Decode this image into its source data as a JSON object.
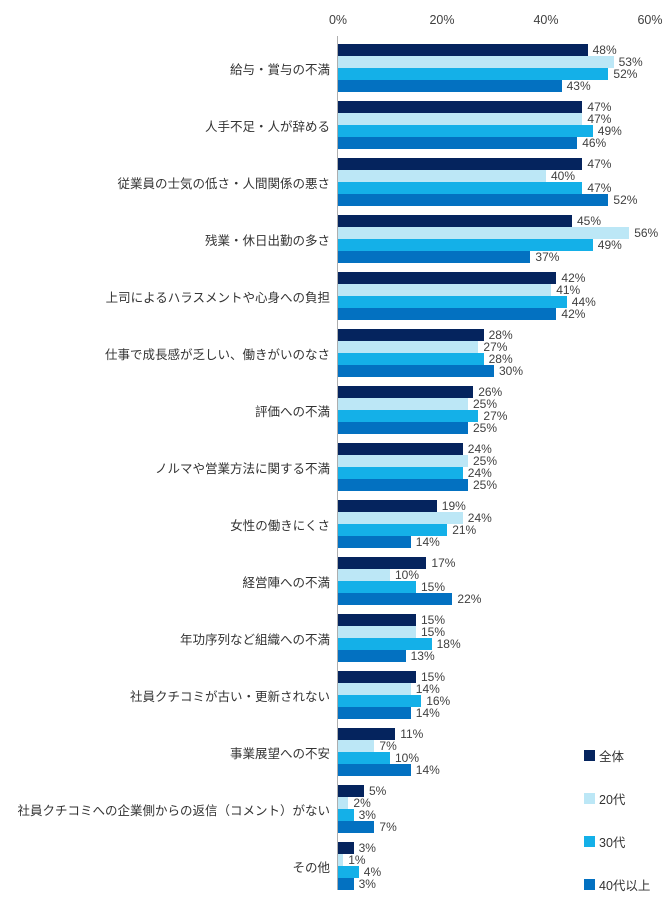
{
  "chart_data": {
    "type": "bar",
    "orientation": "horizontal",
    "title": "",
    "xlabel": "",
    "ylabel": "",
    "xlim": [
      0,
      60
    ],
    "x_ticks": [
      {
        "value": 0,
        "label": "0%"
      },
      {
        "value": 20,
        "label": "20%"
      },
      {
        "value": 40,
        "label": "40%"
      },
      {
        "value": 60,
        "label": "60%"
      }
    ],
    "grid": false,
    "value_suffix": "%",
    "legend_position": "bottom-right",
    "categories": [
      "給与・賞与の不満",
      "人手不足・人が辞める",
      "従業員の士気の低さ・人間関係の悪さ",
      "残業・休日出勤の多さ",
      "上司によるハラスメントや心身への負担",
      "仕事で成長感が乏しい、働きがいのなさ",
      "評価への不満",
      "ノルマや営業方法に関する不満",
      "女性の働きにくさ",
      "経営陣への不満",
      "年功序列など組織への不満",
      "社員クチコミが古い・更新されない",
      "事業展望への不安",
      "社員クチコミへの企業側からの返信（コメント）がない",
      "その他"
    ],
    "series": [
      {
        "name": "全体",
        "color": "#05245e",
        "values": [
          48,
          47,
          47,
          45,
          42,
          28,
          26,
          24,
          19,
          17,
          15,
          15,
          11,
          5,
          3
        ]
      },
      {
        "name": "20代",
        "color": "#bce7f6",
        "values": [
          53,
          47,
          40,
          56,
          41,
          27,
          25,
          25,
          24,
          10,
          15,
          14,
          7,
          2,
          1
        ]
      },
      {
        "name": "30代",
        "color": "#14b0e8",
        "values": [
          52,
          49,
          47,
          49,
          44,
          28,
          27,
          24,
          21,
          15,
          18,
          16,
          10,
          3,
          4
        ]
      },
      {
        "name": "40代以上",
        "color": "#0371c1",
        "values": [
          43,
          46,
          52,
          37,
          42,
          30,
          25,
          25,
          14,
          22,
          13,
          14,
          14,
          7,
          3
        ]
      }
    ],
    "colors": {
      "axis_line": "#aeaeae",
      "tick_label": "#404040",
      "value_label": "#404040",
      "category_label": "#333333",
      "background": "#ffffff"
    }
  }
}
